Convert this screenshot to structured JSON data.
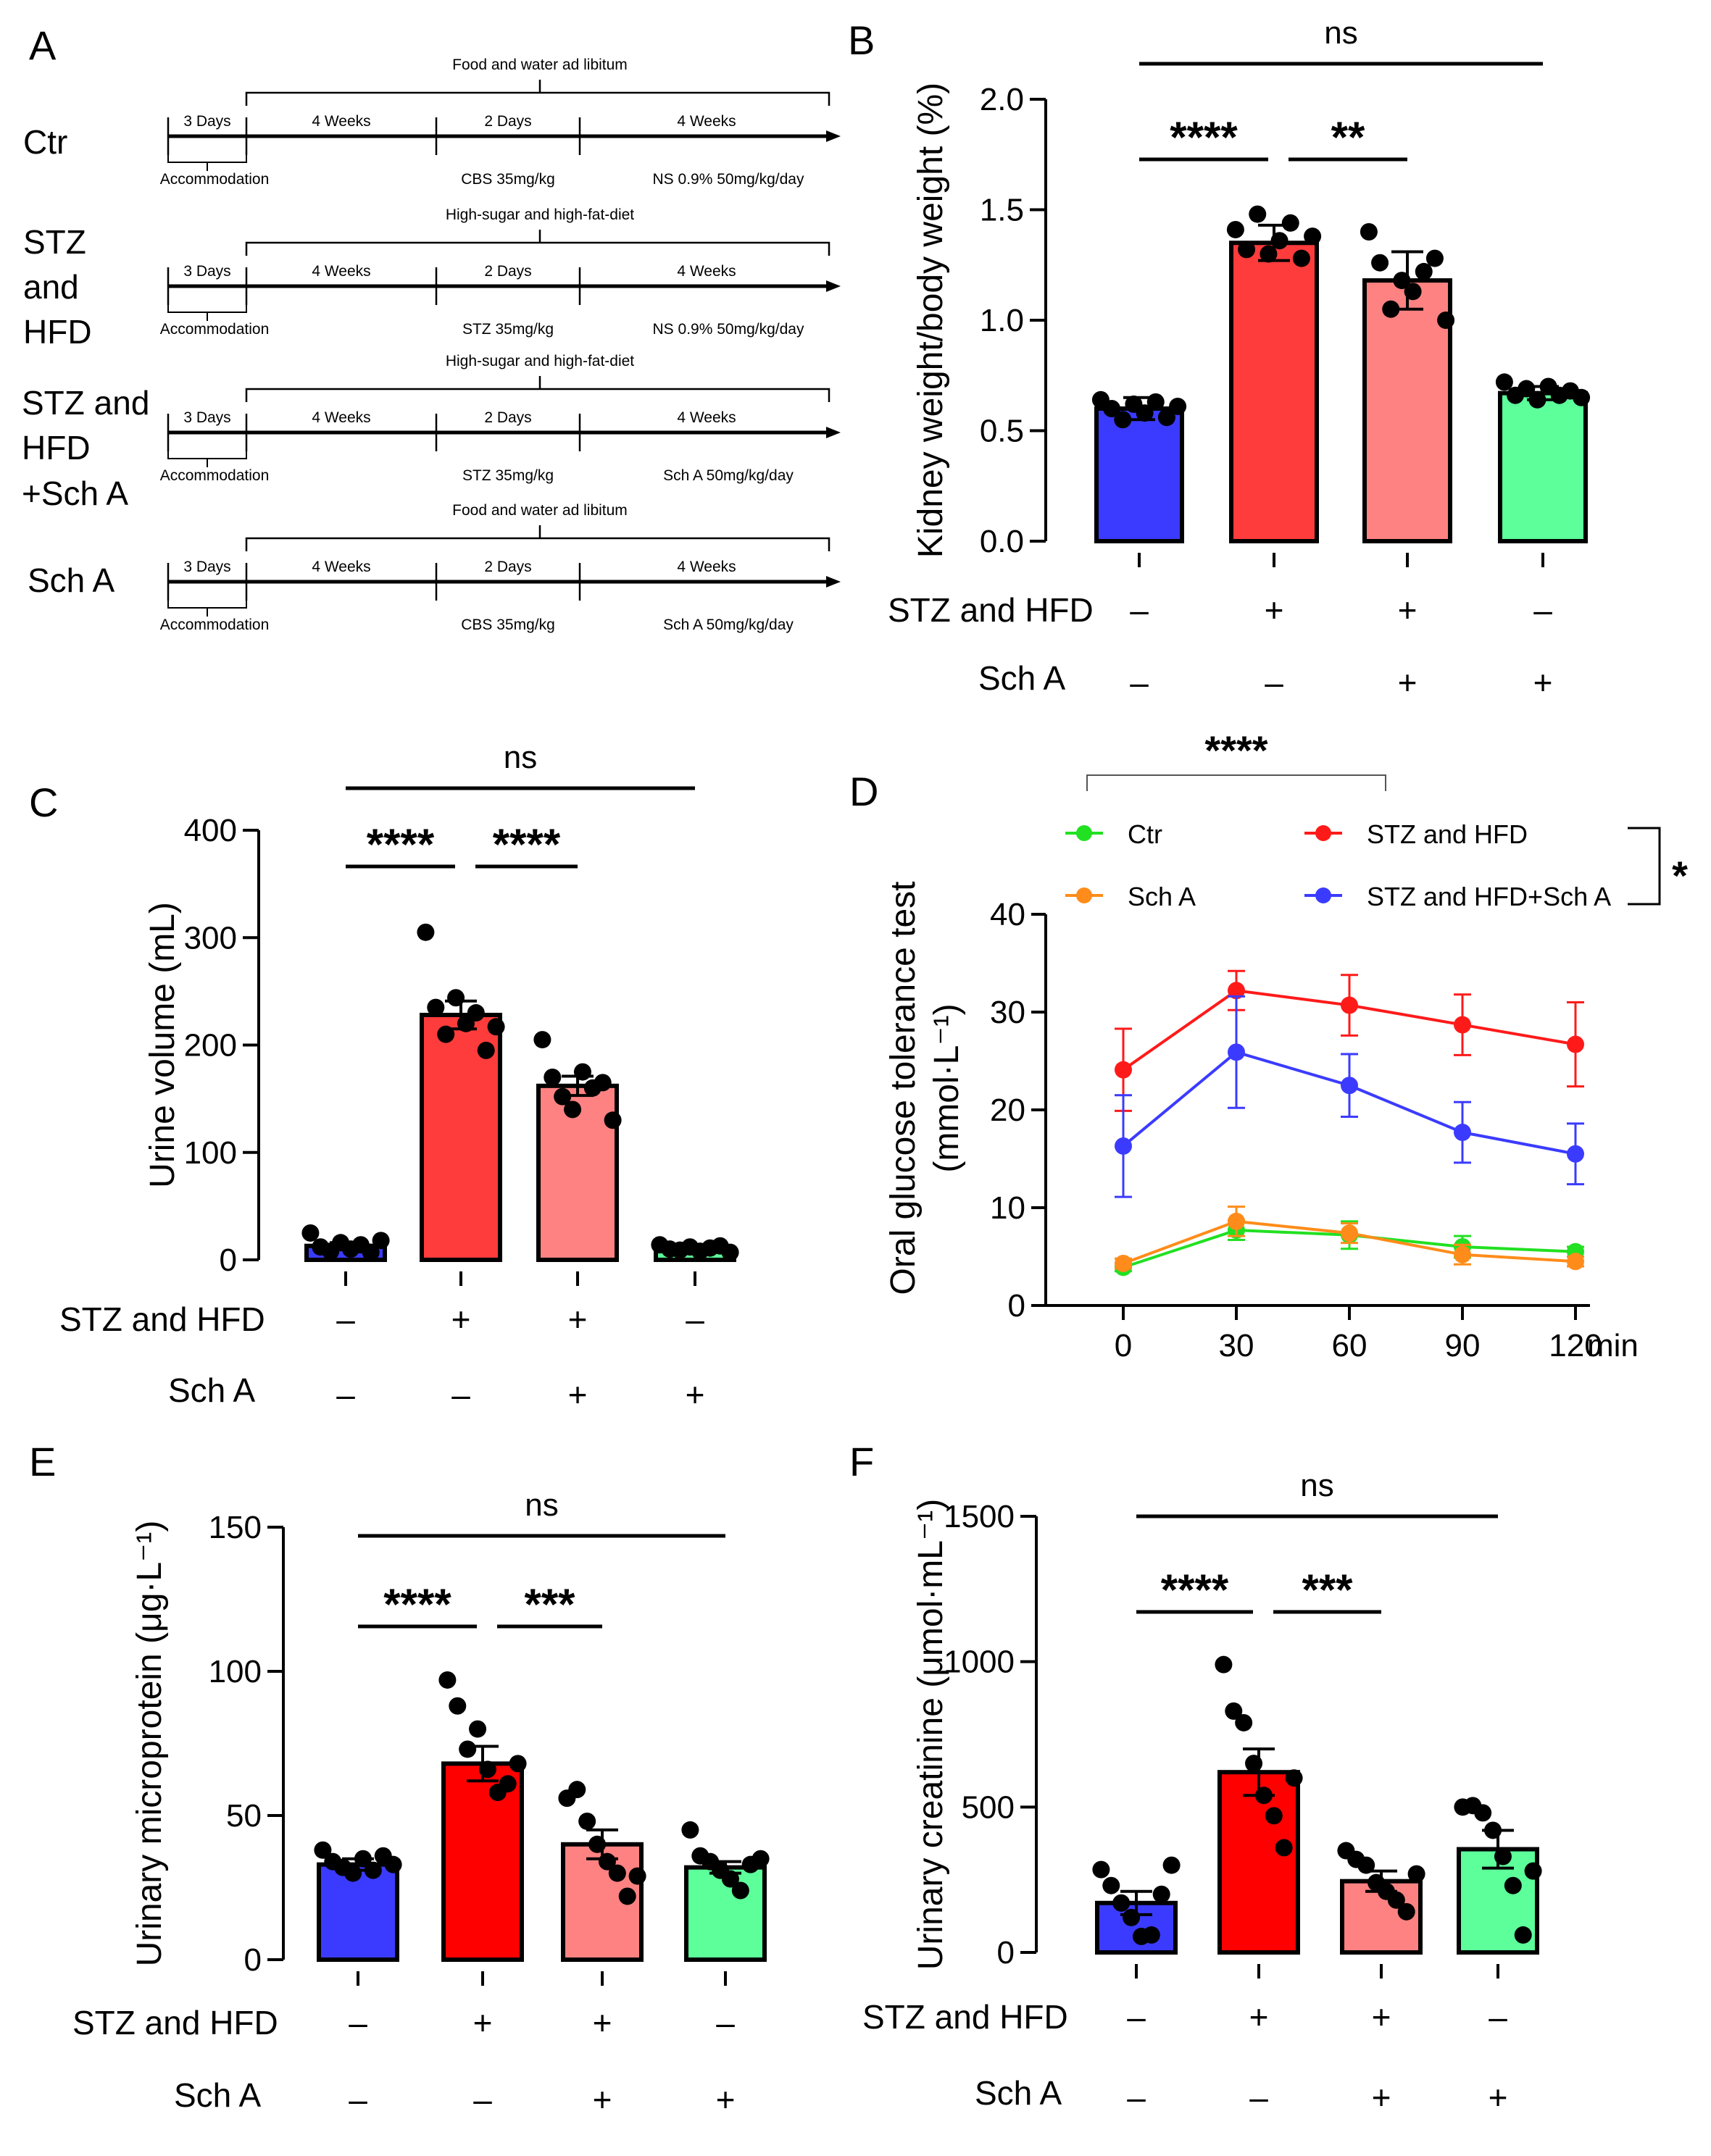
{
  "panels": {
    "A": {
      "label": "A",
      "groups": [
        {
          "name": "Ctr",
          "lines": [
            "Ctr"
          ],
          "header": "Food and water ad libitum",
          "durations": [
            "3 Days",
            "4 Weeks",
            "2 Days",
            "4 Weeks"
          ],
          "treatments": [
            "Accommodation",
            "CBS 35mg/kg",
            "NS 0.9% 50mg/kg/day"
          ]
        },
        {
          "name": "STZ and HFD",
          "lines": [
            "STZ",
            "and",
            "HFD"
          ],
          "header": "High-sugar and high-fat-diet",
          "durations": [
            "3 Days",
            "4 Weeks",
            "2 Days",
            "4 Weeks"
          ],
          "treatments": [
            "Accommodation",
            "STZ 35mg/kg",
            "NS 0.9% 50mg/kg/day"
          ]
        },
        {
          "name": "STZ and HFD +Sch A",
          "lines": [
            "STZ and",
            "HFD",
            "+Sch A"
          ],
          "header": "High-sugar and high-fat-diet",
          "durations": [
            "3 Days",
            "4 Weeks",
            "2 Days",
            "4 Weeks"
          ],
          "treatments": [
            "Accommodation",
            "STZ 35mg/kg",
            "Sch A 50mg/kg/day"
          ]
        },
        {
          "name": "Sch A",
          "lines": [
            "Sch A"
          ],
          "header": "Food and water ad libitum",
          "durations": [
            "3 Days",
            "4 Weeks",
            "2 Days",
            "4 Weeks"
          ],
          "treatments": [
            "Accommodation",
            "CBS 35mg/kg",
            "Sch A 50mg/kg/day"
          ]
        }
      ]
    },
    "factor_labels": {
      "stz": "STZ and HFD",
      "scha": "Sch A"
    },
    "factor_signs": {
      "stz": [
        "–",
        "+",
        "+",
        "–"
      ],
      "scha": [
        "–",
        "–",
        "+",
        "+"
      ]
    },
    "colors": {
      "blue": "#3b3bff",
      "red": "#ff3c3c",
      "red_dark": "#ff0000",
      "pink": "#ff8282",
      "green": "#5cff9a",
      "ogtt_ctr": "#22e022",
      "ogtt_stz": "#ff1a1a",
      "ogtt_scha": "#ff8c1a",
      "ogtt_stzsch": "#3b3bff"
    }
  },
  "chart_data": [
    {
      "panel": "B",
      "type": "bar",
      "label": "B",
      "ylabel": "Kidney weight/body weight (%)",
      "ylim": [
        0,
        2.0
      ],
      "yticks": [
        "0.0",
        "0.5",
        "1.0",
        "1.5",
        "2.0"
      ],
      "groups": [
        "Ctr",
        "STZ and HFD",
        "STZ and HFD+Sch A",
        "Sch A"
      ],
      "values": [
        0.6,
        1.35,
        1.18,
        0.67
      ],
      "errors": [
        0.05,
        0.08,
        0.13,
        0.03
      ],
      "points": [
        [
          0.64,
          0.6,
          0.55,
          0.62,
          0.58,
          0.63,
          0.56,
          0.61
        ],
        [
          1.41,
          1.32,
          1.48,
          1.3,
          1.36,
          1.44,
          1.28,
          1.38
        ],
        [
          1.4,
          1.26,
          1.05,
          1.18,
          1.13,
          1.22,
          1.28,
          1.0
        ],
        [
          0.72,
          0.66,
          0.69,
          0.64,
          0.7,
          0.66,
          0.68,
          0.65
        ]
      ],
      "significance": [
        {
          "text": "****",
          "between": [
            0,
            1
          ]
        },
        {
          "text": "**",
          "between": [
            1,
            2
          ]
        },
        {
          "text": "ns",
          "between": [
            0,
            3
          ]
        }
      ]
    },
    {
      "panel": "C",
      "type": "bar",
      "label": "C",
      "ylabel": "Urine volume (mL)",
      "ylim": [
        0,
        400
      ],
      "yticks": [
        "0",
        "100",
        "200",
        "300",
        "400"
      ],
      "groups": [
        "Ctr",
        "STZ and HFD",
        "STZ and HFD+Sch A",
        "Sch A"
      ],
      "values": [
        13,
        228,
        162,
        11
      ],
      "errors": [
        3,
        13,
        9,
        2
      ],
      "points": [
        [
          25,
          12,
          8,
          16,
          10,
          14,
          7,
          18
        ],
        [
          305,
          235,
          210,
          244,
          220,
          230,
          195,
          217
        ],
        [
          205,
          170,
          152,
          140,
          175,
          160,
          165,
          130
        ],
        [
          14,
          10,
          9,
          12,
          8,
          11,
          13,
          7
        ]
      ],
      "significance": [
        {
          "text": "****",
          "between": [
            0,
            1
          ]
        },
        {
          "text": "****",
          "between": [
            1,
            2
          ]
        },
        {
          "text": "ns",
          "between": [
            0,
            3
          ]
        }
      ]
    },
    {
      "panel": "D",
      "type": "line",
      "label": "D",
      "ylabel": "Oral glucose tolerance test  (mmol·L⁻¹)",
      "x": [
        0,
        30,
        60,
        90,
        120
      ],
      "xticks": [
        "0",
        "30",
        "60",
        "90",
        "120"
      ],
      "xunit": "min",
      "ylim": [
        0,
        40
      ],
      "yticks": [
        "0",
        "10",
        "20",
        "30",
        "40"
      ],
      "series": [
        {
          "name": "Ctr",
          "values": [
            3.9,
            7.7,
            7.2,
            6.0,
            5.5
          ],
          "errors": [
            0.4,
            1.0,
            1.4,
            1.1,
            0.5
          ]
        },
        {
          "name": "STZ and HFD",
          "values": [
            24.1,
            32.2,
            30.7,
            28.7,
            26.7
          ],
          "errors": [
            4.2,
            2.0,
            3.1,
            3.1,
            4.3
          ]
        },
        {
          "name": "Sch A",
          "values": [
            4.3,
            8.6,
            7.4,
            5.2,
            4.5
          ],
          "errors": [
            0.5,
            1.5,
            1.0,
            1.0,
            0.5
          ]
        },
        {
          "name": "STZ and HFD+Sch A",
          "values": [
            16.3,
            25.9,
            22.5,
            17.7,
            15.5
          ],
          "errors": [
            5.2,
            5.7,
            3.2,
            3.1,
            3.1
          ]
        }
      ],
      "legend": [
        "Ctr",
        "STZ and HFD",
        "Sch A",
        "STZ and HFD+Sch A"
      ],
      "significance": [
        {
          "text": "****"
        },
        {
          "text": "*"
        }
      ]
    },
    {
      "panel": "E",
      "type": "bar",
      "label": "E",
      "ylabel": "Urinary microprotein (μg·L⁻¹)",
      "ylim": [
        0,
        150
      ],
      "yticks": [
        "0",
        "50",
        "100",
        "150"
      ],
      "groups": [
        "Ctr",
        "STZ and HFD",
        "STZ and HFD+Sch A",
        "Sch A"
      ],
      "values": [
        33,
        68,
        40,
        32
      ],
      "errors": [
        2,
        6,
        5,
        2
      ],
      "points": [
        [
          38,
          34,
          32,
          30,
          35,
          31,
          36,
          33
        ],
        [
          97,
          88,
          73,
          80,
          66,
          58,
          61,
          68
        ],
        [
          56,
          59,
          48,
          40,
          34,
          30,
          22,
          29
        ],
        [
          45,
          36,
          34,
          31,
          28,
          24,
          33,
          35
        ]
      ],
      "significance": [
        {
          "text": "****",
          "between": [
            0,
            1
          ]
        },
        {
          "text": "***",
          "between": [
            1,
            2
          ]
        },
        {
          "text": "ns",
          "between": [
            0,
            3
          ]
        }
      ]
    },
    {
      "panel": "F",
      "type": "bar",
      "label": "F",
      "ylabel": "Urinary creatinine (μmol·mL⁻¹)",
      "ylim": [
        0,
        1500
      ],
      "yticks": [
        "0",
        "500",
        "1000",
        "1500"
      ],
      "groups": [
        "Ctr",
        "STZ and HFD",
        "STZ and HFD+Sch A",
        "Sch A"
      ],
      "values": [
        170,
        620,
        245,
        355
      ],
      "errors": [
        40,
        80,
        35,
        65
      ],
      "points": [
        [
          285,
          230,
          170,
          120,
          55,
          60,
          200,
          300
        ],
        [
          990,
          830,
          790,
          650,
          540,
          470,
          360,
          600
        ],
        [
          350,
          320,
          300,
          240,
          210,
          180,
          140,
          270
        ],
        [
          500,
          505,
          480,
          420,
          330,
          230,
          60,
          280
        ]
      ],
      "significance": [
        {
          "text": "****",
          "between": [
            0,
            1
          ]
        },
        {
          "text": "***",
          "between": [
            1,
            2
          ]
        },
        {
          "text": "ns",
          "between": [
            0,
            3
          ]
        }
      ]
    }
  ]
}
